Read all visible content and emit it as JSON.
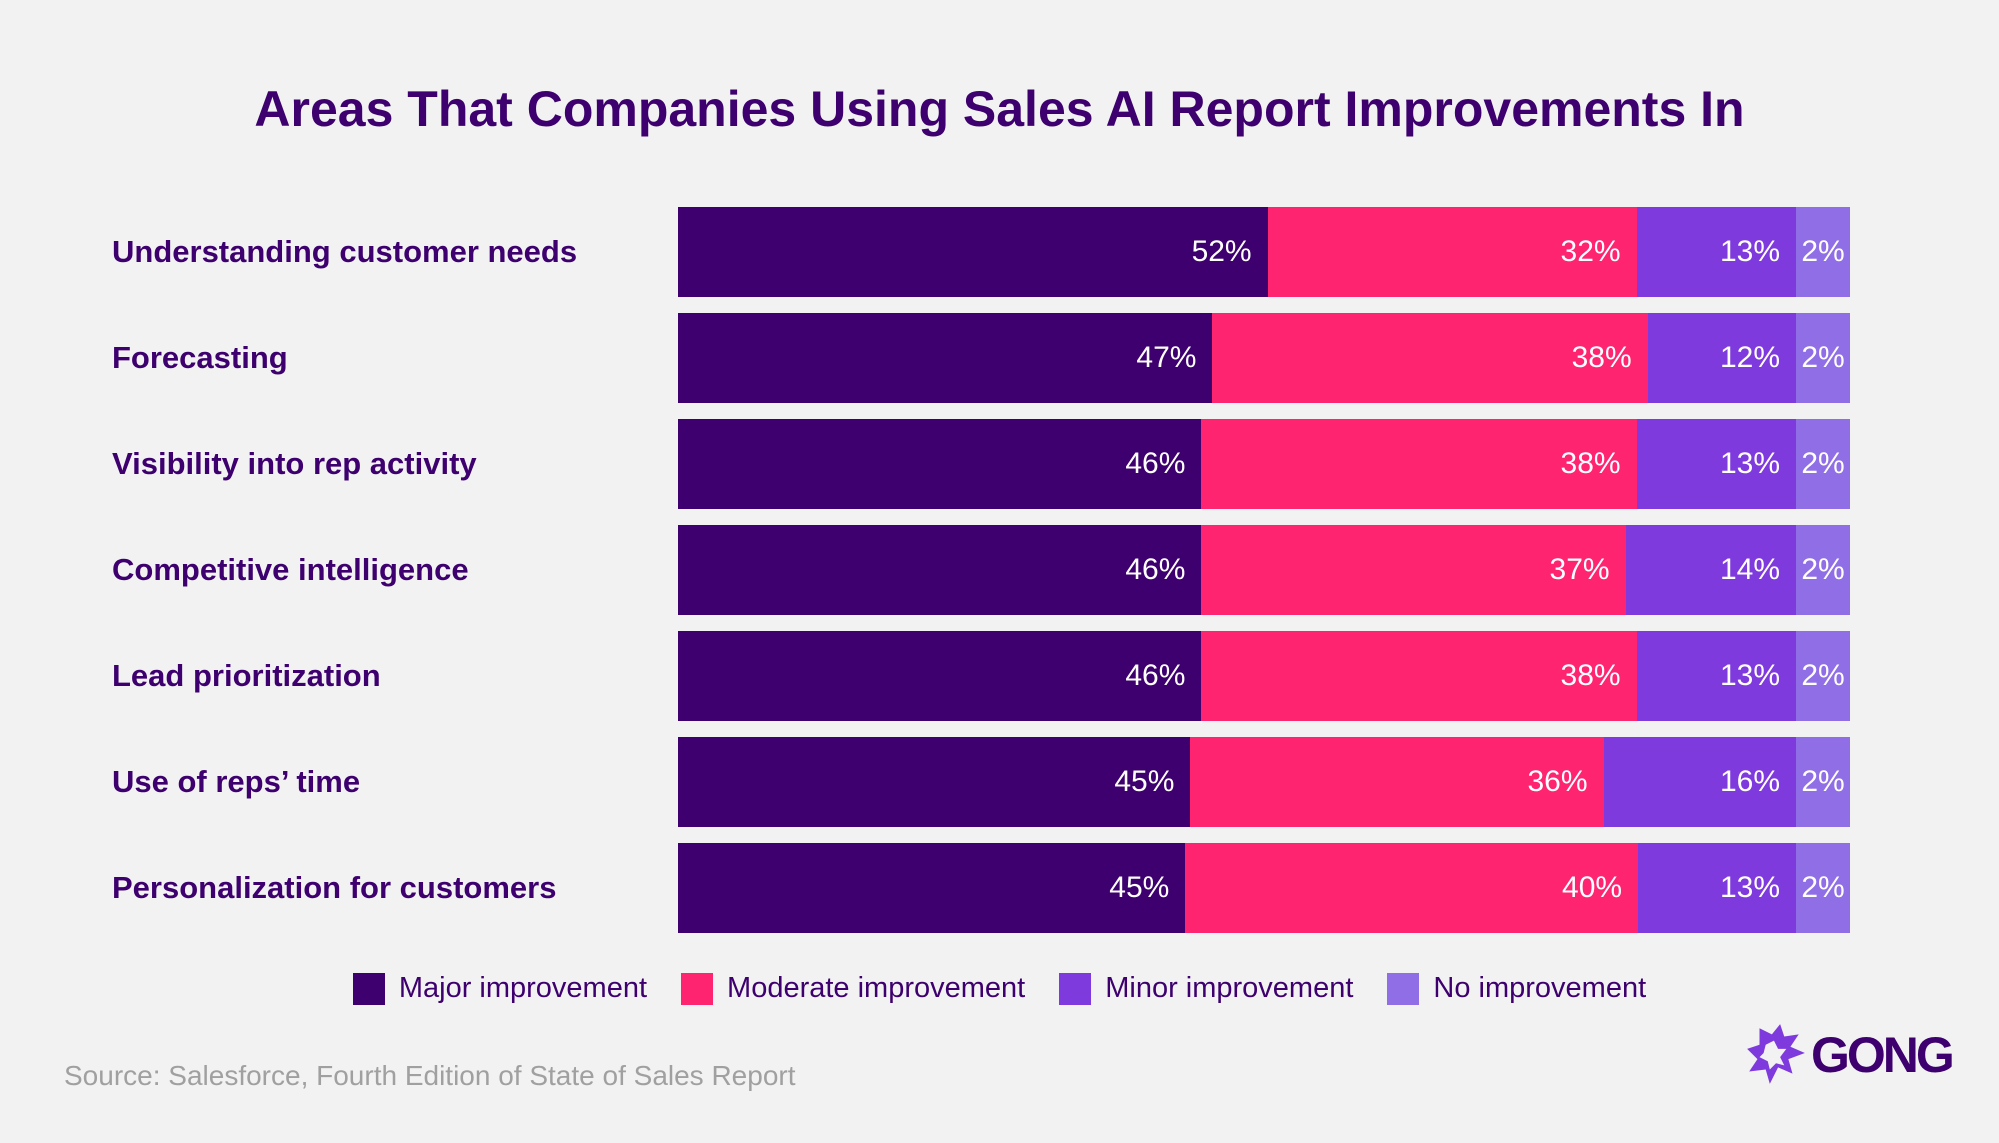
{
  "chart_data": {
    "type": "bar",
    "orientation": "horizontal-stacked",
    "title": "Areas That Companies Using Sales AI Report Improvements In",
    "categories": [
      "Understanding customer needs",
      "Forecasting",
      "Visibility into rep activity",
      "Competitive intelligence",
      "Lead prioritization",
      "Use of reps’ time",
      "Personalization for customers"
    ],
    "series": [
      {
        "name": "Major improvement",
        "color": "#3d006e",
        "values": [
          52,
          47,
          46,
          46,
          46,
          45,
          45
        ]
      },
      {
        "name": "Moderate improvement",
        "color": "#ff2470",
        "values": [
          32,
          38,
          38,
          37,
          38,
          36,
          40
        ]
      },
      {
        "name": "Minor improvement",
        "color": "#7f3add",
        "values": [
          13,
          12,
          13,
          14,
          13,
          16,
          13
        ]
      },
      {
        "name": "No improvement",
        "color": "#8f6ee6",
        "values": [
          2,
          2,
          2,
          2,
          2,
          2,
          2
        ]
      }
    ],
    "value_suffix": "%",
    "legend": "bottom",
    "grid": false
  },
  "source": "Source: Salesforce, Fourth Edition of State of Sales Report",
  "logo": {
    "text": "GONG",
    "icon": "gong-starburst-icon",
    "color": "#7f3add"
  }
}
